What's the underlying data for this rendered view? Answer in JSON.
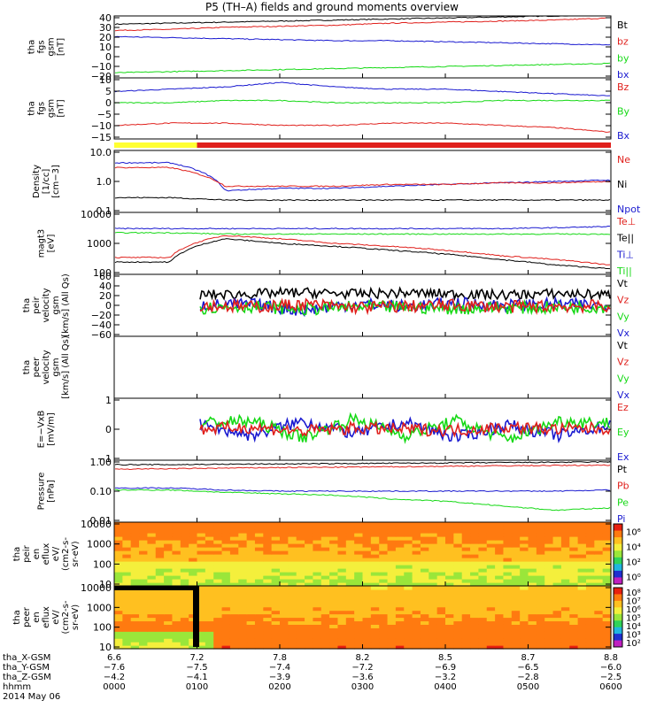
{
  "title": "P5 (TH–A) fields and ground moments overview",
  "colors": {
    "black": "#000000",
    "red": "#e0201c",
    "green": "#16d916",
    "blue": "#1a1ad0",
    "yellow": "#ffff33",
    "white": "#ffffff"
  },
  "chart_data": [
    {
      "type": "line",
      "name": "tha fgs gsm",
      "ylabel": [
        "tha",
        "fgs",
        "gsm",
        "[nT]"
      ],
      "ylim": [
        -20,
        40
      ],
      "yticks": [
        "40",
        "30",
        "20",
        "10",
        "0",
        "−10",
        "−20"
      ],
      "legend": [
        "Bt",
        "bz",
        "by",
        "bx"
      ],
      "series": [
        {
          "name": "Bt",
          "color": "black",
          "values": [
            32,
            33,
            34,
            35,
            36,
            37,
            38,
            39,
            40,
            41
          ]
        },
        {
          "name": "bz",
          "color": "red",
          "values": [
            26,
            27,
            29,
            30,
            31,
            33,
            34,
            35,
            36,
            38
          ]
        },
        {
          "name": "bx",
          "color": "blue",
          "values": [
            20,
            19,
            18,
            17,
            16,
            16,
            15,
            14,
            13,
            12
          ]
        },
        {
          "name": "by",
          "color": "green",
          "values": [
            -15,
            -14,
            -13,
            -12,
            -11,
            -10,
            -9,
            -8,
            -7,
            -6
          ]
        }
      ]
    },
    {
      "type": "line",
      "name": "tha fgs gsm residual",
      "ylabel": [
        "tha",
        "fgs",
        "gsm",
        "[nT]"
      ],
      "ylim": [
        -17,
        10
      ],
      "yticks": [
        "10",
        "5",
        "0",
        "−5",
        "−10",
        "−15"
      ],
      "legend": [
        "Bz",
        "By",
        "Bx"
      ],
      "series": [
        {
          "name": "Bx",
          "color": "blue",
          "values": [
            4,
            5,
            6,
            8,
            6,
            5,
            5,
            4,
            3,
            2
          ]
        },
        {
          "name": "By",
          "color": "green",
          "values": [
            -1,
            -1,
            0,
            0,
            -1,
            -1,
            -1,
            0,
            0,
            0
          ]
        },
        {
          "name": "Bz",
          "color": "red",
          "values": [
            -11,
            -10,
            -10,
            -11,
            -11,
            -10,
            -10,
            -11,
            -12,
            -14
          ]
        }
      ]
    },
    {
      "type": "line",
      "name": "Density",
      "ylog": true,
      "ylabel": [
        "Density",
        "[1/cc]",
        "[cm−3]"
      ],
      "ylim": [
        0.1,
        10
      ],
      "yticks": [
        "10.0",
        "1.0",
        "0.1"
      ],
      "legend": [
        "Ne",
        "Ni",
        "Npot"
      ],
      "series": [
        {
          "name": "Npot",
          "color": "blue",
          "values": [
            4.0,
            4.0,
            0.5,
            0.6,
            0.6,
            0.7,
            0.8,
            0.9,
            1.0,
            1.1
          ]
        },
        {
          "name": "Ne",
          "color": "red",
          "values": [
            2.8,
            2.8,
            0.7,
            0.7,
            0.7,
            0.8,
            0.8,
            0.9,
            0.9,
            1.0
          ]
        },
        {
          "name": "Ni",
          "color": "black",
          "values": [
            0.3,
            0.3,
            0.25,
            0.25,
            0.25,
            0.25,
            0.25,
            0.25,
            0.25,
            0.25
          ]
        }
      ]
    },
    {
      "type": "line",
      "name": "magt3",
      "ylog": true,
      "ylabel": [
        "magt3",
        "[eV]"
      ],
      "ylim": [
        100,
        10000
      ],
      "yticks": [
        "10000",
        "1000",
        "100"
      ],
      "legend": [
        "Te⊥",
        "Te||",
        "Ti⊥",
        "Ti||"
      ],
      "series": [
        {
          "name": "Ti⊥",
          "color": "blue",
          "values": [
            3000,
            3000,
            3000,
            3000,
            3000,
            3000,
            3000,
            3000,
            3200,
            3500
          ]
        },
        {
          "name": "Ti||",
          "color": "green",
          "values": [
            2200,
            2200,
            2000,
            2000,
            2000,
            2000,
            2000,
            2000,
            2000,
            2000
          ]
        },
        {
          "name": "Te⊥",
          "color": "red",
          "values": [
            350,
            350,
            1800,
            1400,
            1000,
            800,
            600,
            400,
            300,
            200
          ]
        },
        {
          "name": "Te||",
          "color": "black",
          "values": [
            250,
            250,
            1400,
            1000,
            800,
            600,
            450,
            300,
            200,
            150
          ]
        }
      ]
    },
    {
      "type": "line",
      "name": "tha peir velocity gsm",
      "ylabel": [
        "tha",
        "peir",
        "velocity",
        "gsm",
        "[km/s] (All Qs)"
      ],
      "ylim": [
        -60,
        60
      ],
      "yticks": [
        "60",
        "40",
        "20",
        "0",
        "−20",
        "−40",
        "−60"
      ],
      "legend": [
        "Vt",
        "Vz",
        "Vy",
        "Vx"
      ],
      "series": [
        {
          "name": "Vt",
          "color": "black",
          "values": [
            20,
            22,
            25,
            22,
            24,
            22,
            20,
            23,
            20
          ]
        },
        {
          "name": "Vx",
          "color": "blue",
          "values": [
            0,
            2,
            -10,
            3,
            -2,
            4,
            0,
            2,
            0
          ]
        },
        {
          "name": "Vy",
          "color": "green",
          "values": [
            -5,
            -2,
            -8,
            -3,
            -4,
            -6,
            -5,
            -4,
            -3
          ]
        },
        {
          "name": "Vz",
          "color": "red",
          "values": [
            0,
            -3,
            2,
            -4,
            -2,
            0,
            -3,
            -2,
            -1
          ]
        }
      ]
    },
    {
      "type": "line",
      "name": "tha peer velocity gsm",
      "ylabel": [
        "tha",
        "peer",
        "velocity",
        "gsm",
        "[km/s] (All Qs)"
      ],
      "ylim": [
        -1,
        1
      ],
      "yticks": [],
      "legend": [
        "Vt",
        "Vz",
        "Vy",
        "Vx"
      ],
      "series": []
    },
    {
      "type": "line",
      "name": "E=-VxB",
      "ylabel": [
        "E=−VxB",
        "[mV/m]"
      ],
      "ylim": [
        -1.5,
        1.5
      ],
      "yticks": [
        "1",
        "0",
        "−1"
      ],
      "legend": [
        "Ez",
        "Ey",
        "Ex"
      ],
      "series": [
        {
          "name": "Ex",
          "color": "blue",
          "values": [
            0.2,
            -0.3,
            0.4,
            -0.2,
            0.3,
            -0.4,
            0.2,
            -0.3,
            0.2
          ]
        },
        {
          "name": "Ey",
          "color": "green",
          "values": [
            0.3,
            0.4,
            -0.4,
            0.5,
            -0.3,
            0.4,
            -0.5,
            0.4,
            0.3
          ]
        },
        {
          "name": "Ez",
          "color": "red",
          "values": [
            0,
            0.1,
            -0.1,
            0.05,
            0,
            -0.05,
            0.1,
            0,
            0.05
          ]
        }
      ]
    },
    {
      "type": "line",
      "name": "Pressure",
      "ylog": true,
      "ylabel": [
        "Pressure",
        "[nPa]"
      ],
      "ylim": [
        0.01,
        1.2
      ],
      "yticks": [
        "1.00",
        "0.10",
        "0.01"
      ],
      "legend": [
        "Pt",
        "Pb",
        "Pe",
        "Pi"
      ],
      "series": [
        {
          "name": "Pt",
          "color": "black",
          "values": [
            0.85,
            0.85,
            0.88,
            0.9,
            0.92,
            0.95,
            0.97,
            1.0,
            1.02,
            1.05
          ]
        },
        {
          "name": "Pb",
          "color": "red",
          "values": [
            0.6,
            0.62,
            0.65,
            0.68,
            0.7,
            0.72,
            0.75,
            0.78,
            0.8,
            0.82
          ]
        },
        {
          "name": "Pi",
          "color": "blue",
          "values": [
            0.14,
            0.14,
            0.12,
            0.11,
            0.11,
            0.11,
            0.11,
            0.11,
            0.11,
            0.12
          ]
        },
        {
          "name": "Pe",
          "color": "green",
          "values": [
            0.12,
            0.12,
            0.1,
            0.09,
            0.08,
            0.06,
            0.05,
            0.035,
            0.025,
            0.03
          ]
        }
      ]
    },
    {
      "type": "heatmap",
      "name": "tha peir en eflux",
      "ylabel": [
        "tha",
        "peir",
        "en",
        "eflux",
        "eV/",
        "(cm2-s-",
        "sr-eV)"
      ],
      "ylim": [
        8,
        30000
      ],
      "yticks": [
        "10000",
        "1000",
        "100",
        "10"
      ],
      "colorbar_ticks": [
        "10⁶",
        "10⁴",
        "10²",
        "10⁰"
      ]
    },
    {
      "type": "heatmap",
      "name": "tha peer en eflux",
      "ylabel": [
        "tha",
        "peer",
        "en",
        "eflux",
        "eV/",
        "(cm2-s-",
        "sr-eV)"
      ],
      "ylim": [
        8,
        30000
      ],
      "yticks": [
        "10000",
        "1000",
        "100",
        "10"
      ],
      "colorbar_ticks": [
        "10⁸",
        "10⁷",
        "10⁶",
        "10⁵",
        "10⁴",
        "10³",
        "10²"
      ]
    }
  ],
  "mode_bar": {
    "segments": [
      {
        "color": "yellow",
        "from": 0,
        "to": 1
      },
      {
        "color": "red",
        "from": 1,
        "to": 6
      }
    ]
  },
  "xaxis": {
    "rows": [
      {
        "label": "tha_X-GSM",
        "values": [
          "6.6",
          "7.2",
          "7.8",
          "8.2",
          "8.5",
          "8.7",
          "8.8"
        ]
      },
      {
        "label": "tha_Y-GSM",
        "values": [
          "−7.6",
          "−7.5",
          "−7.4",
          "−7.2",
          "−6.9",
          "−6.5",
          "−6.0"
        ]
      },
      {
        "label": "tha_Z-GSM",
        "values": [
          "−4.2",
          "−4.1",
          "−3.9",
          "−3.6",
          "−3.2",
          "−2.8",
          "−2.5"
        ]
      },
      {
        "label": "hhmm",
        "values": [
          "0000",
          "0100",
          "0200",
          "0300",
          "0400",
          "0500",
          "0600"
        ]
      }
    ],
    "date": "2014 May 06"
  }
}
